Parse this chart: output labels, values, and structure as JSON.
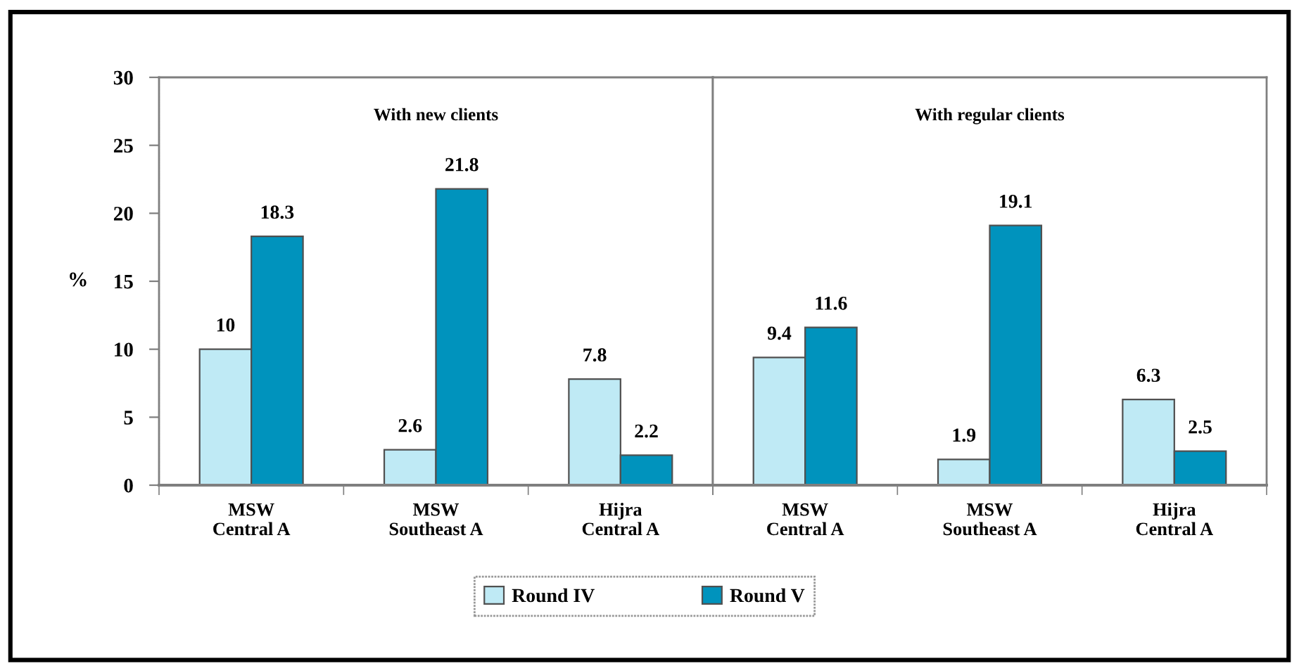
{
  "chart_data": [
    {
      "type": "bar",
      "title": "With new clients",
      "ylabel": "%",
      "categories": [
        "MSW\nCentral A",
        "MSW\nSoutheast A",
        "Hijra\nCentral A"
      ],
      "series": [
        {
          "name": "Round IV",
          "color": "#bfeaf5",
          "values": [
            10,
            2.6,
            7.8
          ]
        },
        {
          "name": "Round V",
          "color": "#0093bd",
          "values": [
            18.3,
            21.8,
            2.2
          ]
        }
      ],
      "ylim": [
        0,
        30
      ],
      "yticks": [
        0,
        5,
        10,
        15,
        20,
        25,
        30
      ],
      "data_labels": true,
      "legend": "bottom",
      "grid": false
    },
    {
      "type": "bar",
      "title": "With regular clients",
      "categories": [
        "MSW\nCentral A",
        "MSW\nSoutheast A",
        "Hijra\nCentral A"
      ],
      "series": [
        {
          "color": "#bfeaf5",
          "values": [
            9.4,
            1.9,
            6.3
          ]
        },
        {
          "color": "#0093bd",
          "values": [
            11.6,
            19.1,
            2.5
          ]
        }
      ],
      "ylim": [
        0,
        30
      ],
      "yticks": [
        0,
        5,
        10,
        15,
        20,
        25,
        30
      ],
      "data_labels": true,
      "tick_labels": "x",
      "grid": false
    }
  ]
}
